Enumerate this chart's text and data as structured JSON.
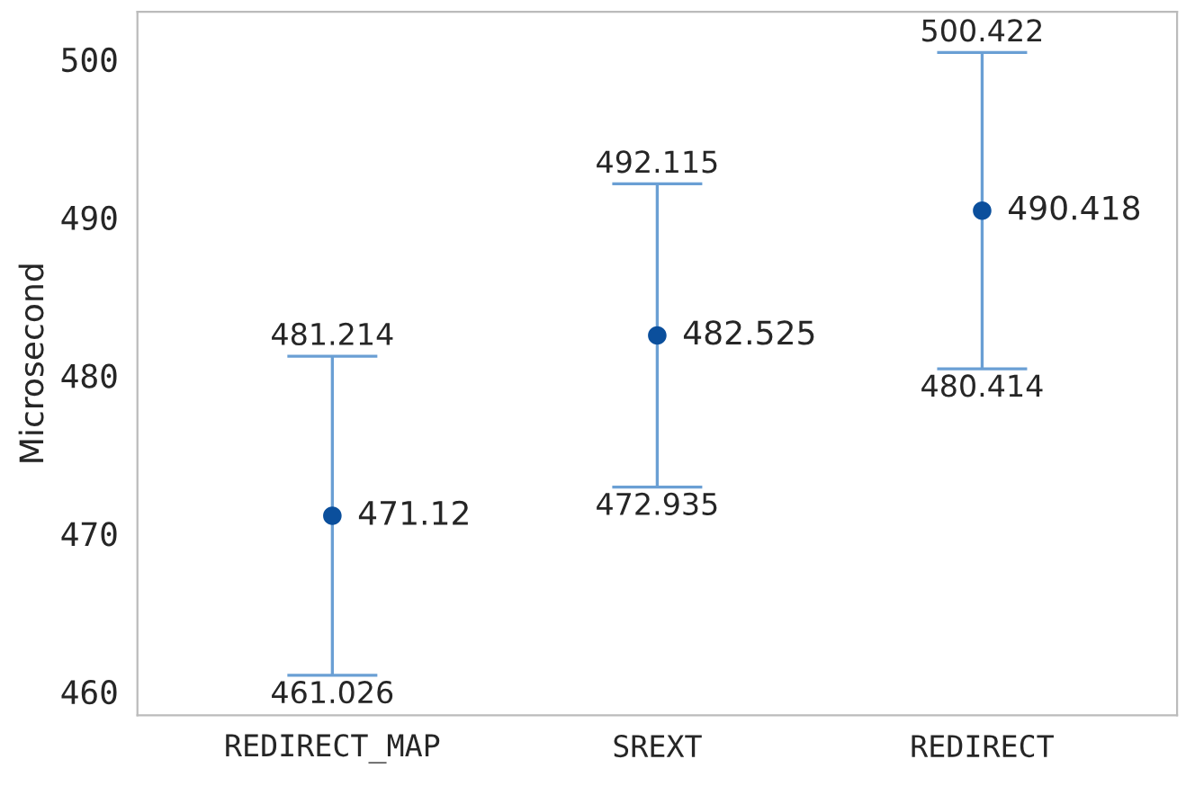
{
  "chart_data": {
    "type": "scatter",
    "ylabel": "Microsecond",
    "categories": [
      "REDIRECT_MAP",
      "SREXT",
      "REDIRECT"
    ],
    "series": [
      {
        "color": "#0b4f9c",
        "values": [
          471.12,
          482.525,
          490.418
        ],
        "errors": [
          [
            461.026,
            481.214
          ],
          [
            472.935,
            492.115
          ],
          [
            480.414,
            500.422
          ]
        ]
      }
    ],
    "data_labels": true,
    "annotations": [
      {
        "text": "481.214",
        "x": "REDIRECT_MAP",
        "y": 481.214
      },
      {
        "text": "461.026",
        "x": "REDIRECT_MAP",
        "y": 461.026
      },
      {
        "text": "492.115",
        "x": "SREXT",
        "y": 492.115
      },
      {
        "text": "472.935",
        "x": "SREXT",
        "y": 472.935
      },
      {
        "text": "500.422",
        "x": "REDIRECT",
        "y": 500.422
      },
      {
        "text": "480.414",
        "x": "REDIRECT",
        "y": 480.414
      }
    ],
    "ylim": [
      458.5,
      503
    ],
    "yticks": [
      460,
      470,
      480,
      490,
      500
    ],
    "grid": false,
    "marker": "circle"
  }
}
